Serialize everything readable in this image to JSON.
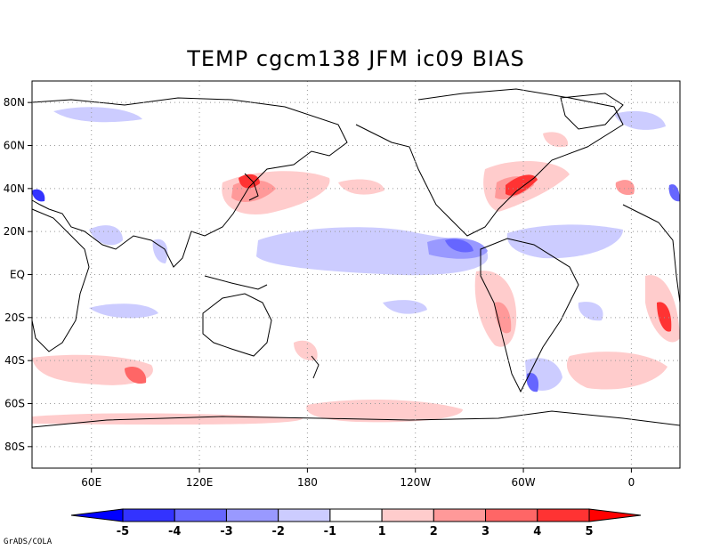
{
  "title": "TEMP cgcm138 JFM ic09 BIAS",
  "footer": "GrADS/COLA",
  "map": {
    "lat_labels": [
      "80N",
      "60N",
      "40N",
      "20N",
      "EQ",
      "20S",
      "40S",
      "60S",
      "80S"
    ],
    "lat_values": [
      80,
      60,
      40,
      20,
      0,
      -20,
      -40,
      -60,
      -80
    ],
    "lon_labels": [
      "60E",
      "120E",
      "180",
      "120W",
      "60W",
      "0"
    ],
    "lon_values": [
      60,
      120,
      180,
      240,
      300,
      360
    ],
    "lon_range": [
      27,
      387
    ],
    "lat_range": [
      -90,
      90
    ]
  },
  "legend": {
    "levels": [
      "-5",
      "-4",
      "-3",
      "-2",
      "-1",
      "1",
      "2",
      "3",
      "4",
      "5"
    ],
    "colors": [
      "#0000ff",
      "#3333ff",
      "#6666ff",
      "#9999ff",
      "#ccccff",
      "#ffffff",
      "#ffcccc",
      "#ff9999",
      "#ff6666",
      "#ff3333",
      "#ff0000"
    ]
  }
}
